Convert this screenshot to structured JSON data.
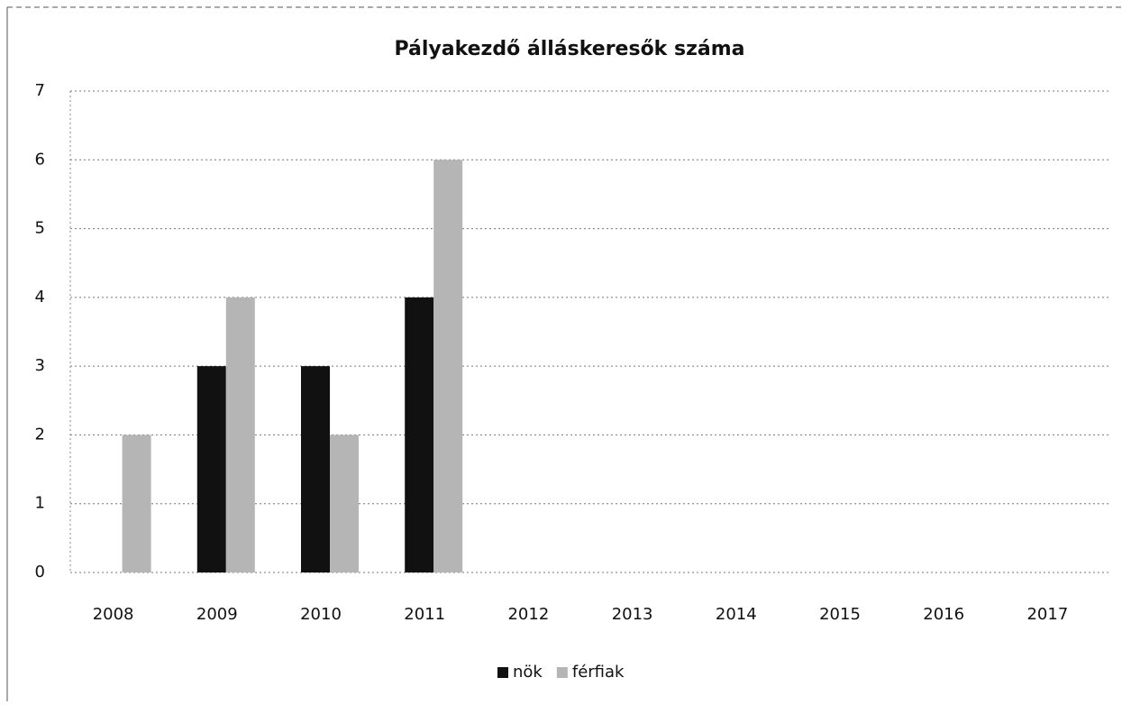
{
  "chart_data": {
    "type": "bar",
    "title": "Pályakezdő álláskeresők száma",
    "categories": [
      "2008",
      "2009",
      "2010",
      "2011",
      "2012",
      "2013",
      "2014",
      "2015",
      "2016",
      "2017"
    ],
    "series": [
      {
        "name": "nök",
        "color": "#111111",
        "values": [
          0,
          3,
          3,
          4,
          null,
          null,
          null,
          null,
          null,
          null
        ]
      },
      {
        "name": "férfiak",
        "color": "#b5b5b5",
        "values": [
          2,
          4,
          2,
          6,
          null,
          null,
          null,
          null,
          null,
          null
        ]
      }
    ],
    "ylim": [
      0,
      7
    ],
    "yticks": [
      0,
      1,
      2,
      3,
      4,
      5,
      6,
      7
    ],
    "grid": true,
    "legend": "bottom"
  }
}
